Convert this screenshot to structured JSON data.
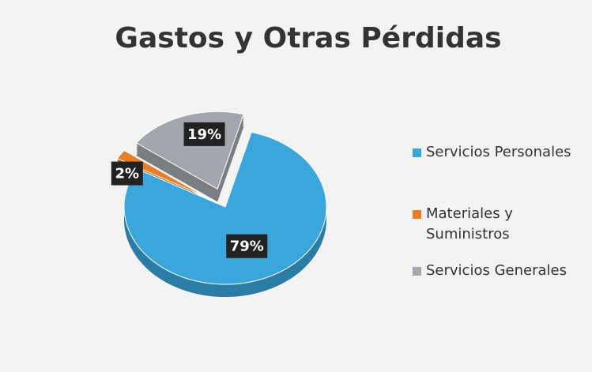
{
  "chart_data": {
    "type": "pie",
    "title": "Gastos y Otras Pérdidas",
    "categories": [
      "Servicios Personales",
      "Materiales y Suministros",
      "Servicios Generales"
    ],
    "values": [
      79,
      2,
      19
    ],
    "value_labels": [
      "79%",
      "2%",
      "19%"
    ],
    "colors": [
      "#3aa6dc",
      "#e87d2a",
      "#a3a7ad"
    ],
    "legend": "right"
  }
}
